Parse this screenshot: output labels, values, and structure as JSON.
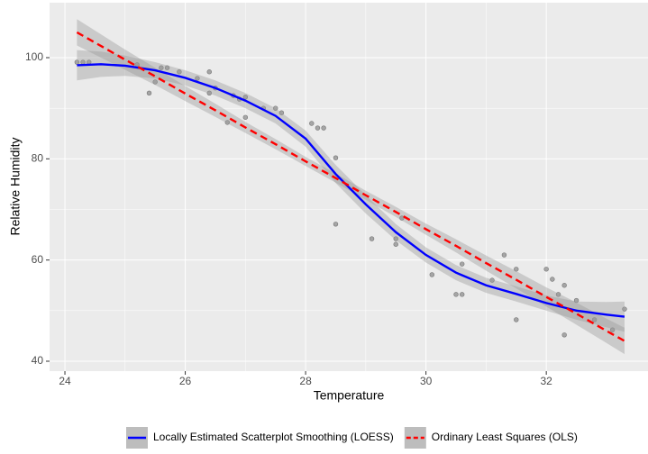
{
  "chart_data": {
    "type": "scatter-smooth",
    "x_label": "Temperature",
    "y_label": "Relative Humidity",
    "xlim": [
      23.745,
      33.69
    ],
    "ylim": [
      38.04,
      110.86
    ],
    "xticks": [
      24,
      26,
      28,
      30,
      32
    ],
    "yticks": [
      40,
      60,
      80,
      100
    ],
    "grid": true,
    "legend_position": "bottom",
    "points": {
      "color": "#999999",
      "x": [
        24.2,
        24.3,
        24.4,
        25.2,
        25.4,
        25.5,
        25.6,
        25.7,
        25.9,
        26.2,
        26.4,
        26.4,
        26.5,
        26.7,
        26.8,
        26.9,
        27.0,
        27.0,
        27.3,
        27.5,
        27.6,
        28.1,
        28.2,
        28.3,
        28.5,
        28.5,
        29.1,
        29.5,
        29.5,
        29.6,
        30.1,
        30.5,
        30.6,
        30.6,
        31.1,
        31.3,
        31.5,
        31.5,
        32.0,
        32.1,
        32.2,
        32.3,
        32.3,
        32.5,
        32.8,
        33.1,
        33.3
      ],
      "values": [
        99.1,
        99.1,
        99.1,
        98.6,
        93,
        95.2,
        98,
        98,
        97.2,
        95.9,
        97.2,
        93,
        94,
        87.2,
        92.5,
        91.8,
        88.2,
        92.2,
        90,
        90,
        89.1,
        87,
        86.1,
        86.1,
        80.2,
        67.1,
        64.2,
        63.1,
        64.2,
        68.3,
        57.1,
        53.2,
        53.2,
        59.2,
        56,
        61,
        48.2,
        58.2,
        58.2,
        56.2,
        53.2,
        45.2,
        55,
        52,
        48.2,
        46.2,
        50.3
      ]
    },
    "series": [
      {
        "name": "Locally Estimated Scatterplot Smoothing (LOESS)",
        "color": "#0000ff",
        "dash": false,
        "x": [
          24.2,
          24.6,
          25,
          25.5,
          26,
          26.5,
          27,
          27.5,
          28,
          28.5,
          29,
          29.5,
          30,
          30.5,
          31,
          31.5,
          32,
          32.5,
          33,
          33.3
        ],
        "values": [
          98.5,
          98.7,
          98.4,
          97.5,
          96,
          94,
          91.5,
          88.5,
          84,
          77,
          71,
          65.5,
          61,
          57.5,
          55,
          53.3,
          51.5,
          50,
          49.2,
          48.8
        ],
        "lower": [
          95.5,
          96.2,
          96.4,
          95.9,
          94.5,
          92.5,
          90,
          87,
          82.4,
          75.2,
          69.2,
          63.9,
          59.5,
          56,
          53.5,
          51.8,
          50,
          48.2,
          46.7,
          45.8
        ],
        "upper": [
          101.5,
          101.2,
          100.4,
          99.1,
          97.5,
          95.5,
          93,
          90,
          85.6,
          78.8,
          72.8,
          67.1,
          62.5,
          59,
          56.5,
          54.8,
          53,
          51.8,
          51.7,
          51.8
        ]
      },
      {
        "name": "Ordinary Least Squares (OLS)",
        "color": "#ff0000",
        "dash": true,
        "x": [
          24.2,
          24.6,
          25,
          25.5,
          26,
          26.5,
          27,
          27.5,
          28,
          28.5,
          29,
          29.5,
          30,
          30.5,
          31,
          31.5,
          32,
          32.5,
          33,
          33.3
        ],
        "values": [
          105,
          102.3,
          99.6,
          96.3,
          92.9,
          89.6,
          86.2,
          82.9,
          79.5,
          76.2,
          72.8,
          69.5,
          66.1,
          62.8,
          59.4,
          56.1,
          52.7,
          49.4,
          46,
          44
        ],
        "lower": [
          102.4,
          100,
          97.6,
          94.6,
          91.4,
          88.3,
          85.1,
          81.9,
          78.6,
          75.3,
          71.9,
          68.5,
          65,
          61.5,
          57.9,
          54.4,
          50.8,
          47.2,
          43.6,
          41.4
        ],
        "upper": [
          107.6,
          104.6,
          101.6,
          98,
          94.4,
          90.9,
          87.3,
          83.9,
          80.4,
          77.1,
          73.7,
          70.5,
          67.2,
          64.1,
          60.9,
          57.8,
          54.6,
          51.6,
          48.4,
          46.6
        ]
      }
    ]
  }
}
